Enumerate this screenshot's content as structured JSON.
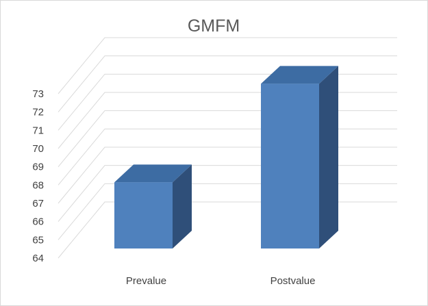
{
  "chart_data": {
    "type": "bar",
    "title": "GMFM",
    "categories": [
      "Prevalue",
      "Postvalue"
    ],
    "values": [
      67.7,
      73.1
    ],
    "ylim": [
      64,
      73
    ],
    "yticks": [
      64,
      65,
      66,
      67,
      68,
      69,
      70,
      71,
      72,
      73
    ],
    "grid": true,
    "three_d": true,
    "colors": {
      "bar_front": "#4f81bd",
      "bar_top": "#3d6ca3",
      "bar_side": "#2f4f79",
      "grid": "#d9d9d9"
    }
  }
}
